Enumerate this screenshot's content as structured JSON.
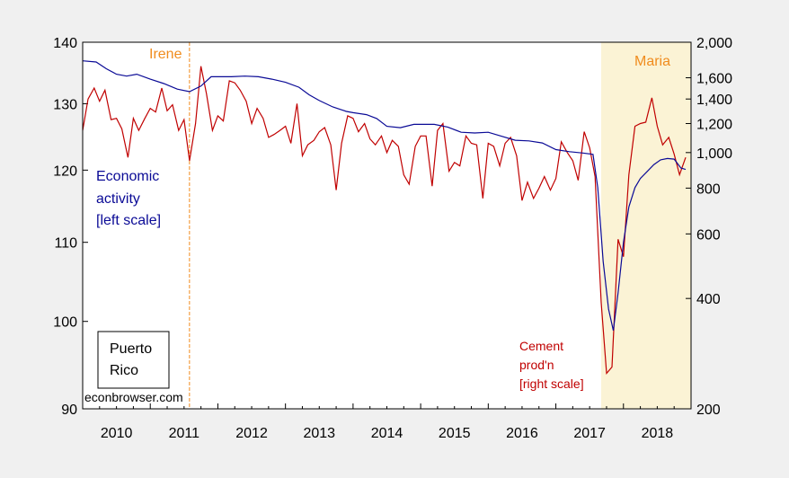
{
  "chart_data": {
    "type": "line",
    "x_axis": {
      "range": [
        2010.0,
        2019.0
      ],
      "tick_labels": [
        "2010",
        "2011",
        "2012",
        "2013",
        "2014",
        "2015",
        "2016",
        "2017",
        "2018"
      ]
    },
    "left_axis": {
      "range": [
        90,
        140
      ],
      "scale": "log",
      "tick_values": [
        90,
        100,
        110,
        120,
        130,
        140
      ],
      "tick_labels": [
        "90",
        "100",
        "110",
        "120",
        "130",
        "140"
      ]
    },
    "right_axis": {
      "range": [
        200,
        2000
      ],
      "scale": "log",
      "tick_values": [
        200,
        400,
        600,
        800,
        1000,
        1200,
        1400,
        1600,
        2000
      ],
      "tick_labels": [
        "200",
        "400",
        "600",
        "800",
        "1,000",
        "1,200",
        "1,400",
        "1,600",
        "2,000"
      ]
    },
    "shaded_region": {
      "x": [
        2017.67,
        2019.0
      ],
      "color": "#fbf3d5",
      "label": "Maria"
    },
    "event_line": {
      "x": 2011.58,
      "color": "#f08c1e",
      "label": "Irene"
    },
    "series": [
      {
        "name": "Economic activity [left scale]",
        "axis": "left",
        "color": "#0a0a96",
        "x": [
          2010.0,
          2010.2,
          2010.35,
          2010.5,
          2010.65,
          2010.8,
          2011.0,
          2011.2,
          2011.4,
          2011.58,
          2011.75,
          2011.9,
          2012.0,
          2012.2,
          2012.4,
          2012.6,
          2012.8,
          2013.0,
          2013.2,
          2013.35,
          2013.5,
          2013.7,
          2013.9,
          2014.0,
          2014.2,
          2014.35,
          2014.5,
          2014.7,
          2014.9,
          2015.0,
          2015.2,
          2015.4,
          2015.6,
          2015.8,
          2016.0,
          2016.2,
          2016.4,
          2016.6,
          2016.8,
          2017.0,
          2017.2,
          2017.4,
          2017.55,
          2017.62,
          2017.7,
          2017.78,
          2017.85,
          2017.92,
          2018.0,
          2018.08,
          2018.17,
          2018.25,
          2018.35,
          2018.45,
          2018.55,
          2018.65,
          2018.75,
          2018.85,
          2018.92
        ],
        "values": [
          136.9,
          136.7,
          135.6,
          134.7,
          134.4,
          134.7,
          133.9,
          133.2,
          132.3,
          131.9,
          132.8,
          134.3,
          134.3,
          134.3,
          134.4,
          134.3,
          133.9,
          133.4,
          132.6,
          131.4,
          130.5,
          129.5,
          128.8,
          128.6,
          128.3,
          127.7,
          126.5,
          126.3,
          126.8,
          126.8,
          126.8,
          126.4,
          125.6,
          125.5,
          125.6,
          125.0,
          124.4,
          124.3,
          124.0,
          123.0,
          122.7,
          122.5,
          122.3,
          117.5,
          107.5,
          101.5,
          98.9,
          103.5,
          110.0,
          114.8,
          117.5,
          118.8,
          119.8,
          120.8,
          121.5,
          121.7,
          121.6,
          120.3,
          120.1
        ]
      },
      {
        "name": "Cement prod'n [right scale]",
        "axis": "right",
        "color": "#c00000",
        "x": [
          2010.0,
          2010.08,
          2010.17,
          2010.25,
          2010.33,
          2010.42,
          2010.5,
          2010.58,
          2010.67,
          2010.75,
          2010.83,
          2010.92,
          2011.0,
          2011.08,
          2011.17,
          2011.25,
          2011.33,
          2011.42,
          2011.5,
          2011.58,
          2011.67,
          2011.75,
          2011.83,
          2011.92,
          2012.0,
          2012.08,
          2012.17,
          2012.25,
          2012.33,
          2012.42,
          2012.5,
          2012.58,
          2012.67,
          2012.75,
          2012.83,
          2012.92,
          2013.0,
          2013.08,
          2013.17,
          2013.25,
          2013.33,
          2013.42,
          2013.5,
          2013.58,
          2013.67,
          2013.75,
          2013.83,
          2013.92,
          2014.0,
          2014.08,
          2014.17,
          2014.25,
          2014.33,
          2014.42,
          2014.5,
          2014.58,
          2014.67,
          2014.75,
          2014.83,
          2014.92,
          2015.0,
          2015.08,
          2015.17,
          2015.25,
          2015.33,
          2015.42,
          2015.5,
          2015.58,
          2015.67,
          2015.75,
          2015.83,
          2015.92,
          2016.0,
          2016.08,
          2016.17,
          2016.25,
          2016.33,
          2016.42,
          2016.5,
          2016.58,
          2016.67,
          2016.75,
          2016.83,
          2016.92,
          2017.0,
          2017.08,
          2017.17,
          2017.25,
          2017.33,
          2017.42,
          2017.5,
          2017.58,
          2017.67,
          2017.75,
          2017.83,
          2017.92,
          2018.0,
          2018.08,
          2018.17,
          2018.25,
          2018.33,
          2018.42,
          2018.5,
          2018.58,
          2018.67,
          2018.75,
          2018.83,
          2018.92
        ],
        "values": [
          1150,
          1400,
          1500,
          1380,
          1480,
          1230,
          1240,
          1160,
          970,
          1240,
          1150,
          1240,
          1320,
          1290,
          1500,
          1300,
          1350,
          1150,
          1230,
          950,
          1200,
          1720,
          1450,
          1150,
          1260,
          1220,
          1570,
          1550,
          1480,
          1380,
          1200,
          1320,
          1240,
          1100,
          1120,
          1150,
          1180,
          1060,
          1360,
          980,
          1050,
          1080,
          1140,
          1170,
          1050,
          790,
          1060,
          1260,
          1240,
          1140,
          1200,
          1090,
          1050,
          1110,
          1000,
          1080,
          1040,
          870,
          820,
          1040,
          1110,
          1110,
          810,
          1150,
          1200,
          890,
          940,
          920,
          1110,
          1060,
          1050,
          750,
          1060,
          1040,
          920,
          1060,
          1100,
          980,
          740,
          830,
          750,
          800,
          860,
          790,
          850,
          1070,
          1000,
          950,
          840,
          1140,
          1030,
          860,
          390,
          250,
          260,
          580,
          520,
          870,
          1180,
          1200,
          1210,
          1410,
          1180,
          1050,
          1100,
          990,
          870,
          970
        ]
      }
    ],
    "annotations": {
      "irene": "Irene",
      "maria": "Maria",
      "econ_lines": [
        "Economic",
        "activity",
        "[left scale]"
      ],
      "cement_lines": [
        "Cement",
        "prod'n",
        "[right scale]"
      ],
      "region_lines": [
        "Puerto",
        "Rico"
      ],
      "source": "econbrowser.com"
    }
  },
  "colors": {
    "econ": "#0a0a96",
    "cement": "#c00000",
    "event": "#f08c1e",
    "shade": "#fbf3d5",
    "bg": "#f0f0f0"
  }
}
